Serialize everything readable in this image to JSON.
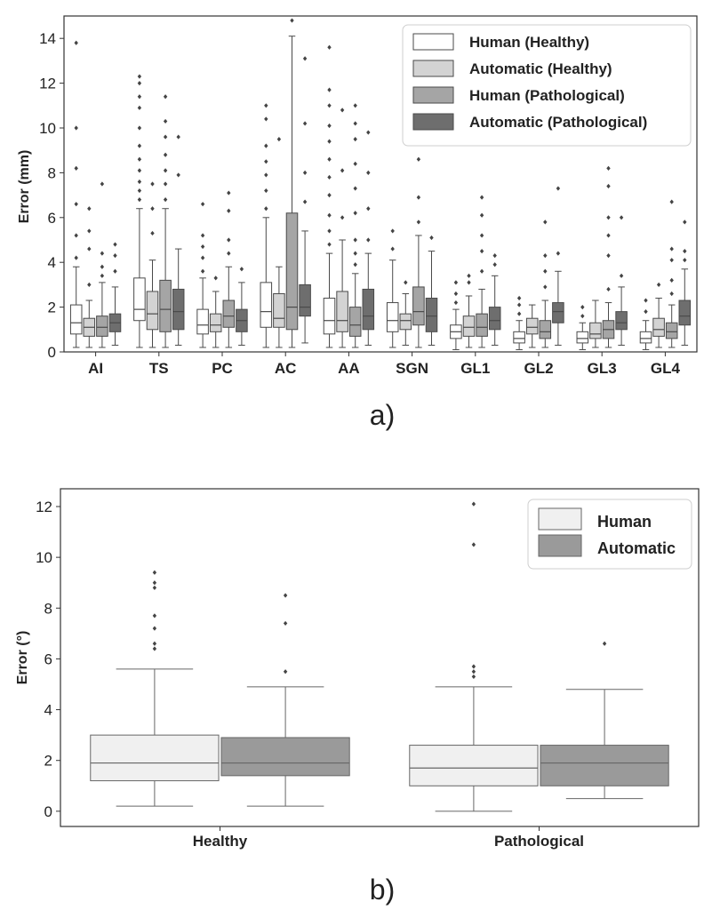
{
  "chart_data": [
    {
      "type": "box",
      "panel_label": "a)",
      "xlabel": "",
      "ylabel": "Error (mm)",
      "ylim": [
        0,
        15
      ],
      "yticks": [
        0,
        2,
        4,
        6,
        8,
        10,
        12,
        14
      ],
      "grid": false,
      "legend_position": "top-right",
      "categories": [
        "AI",
        "TS",
        "PC",
        "AC",
        "AA",
        "SGN",
        "GL1",
        "GL2",
        "GL3",
        "GL4"
      ],
      "series": [
        {
          "name": "Human (Healthy)",
          "color": "#ffffff",
          "boxes": [
            {
              "min": 0.2,
              "q1": 0.8,
              "median": 1.3,
              "q3": 2.1,
              "max": 3.8,
              "outliers": [
                4.2,
                5.2,
                6.6,
                8.2,
                10.0,
                13.8
              ]
            },
            {
              "min": 0.2,
              "q1": 1.4,
              "median": 1.9,
              "q3": 3.3,
              "max": 6.4,
              "outliers": [
                6.8,
                7.2,
                7.6,
                8.1,
                8.6,
                9.2,
                10.0,
                10.9,
                11.4,
                12.0,
                12.3
              ]
            },
            {
              "min": 0.2,
              "q1": 0.8,
              "median": 1.2,
              "q3": 1.9,
              "max": 3.3,
              "outliers": [
                3.6,
                4.2,
                4.7,
                5.2,
                6.6
              ]
            },
            {
              "min": 0.2,
              "q1": 1.1,
              "median": 1.8,
              "q3": 3.1,
              "max": 6.0,
              "outliers": [
                6.4,
                7.2,
                7.9,
                8.5,
                9.2,
                10.4,
                11.0
              ]
            },
            {
              "min": 0.2,
              "q1": 0.8,
              "median": 1.4,
              "q3": 2.4,
              "max": 4.4,
              "outliers": [
                4.8,
                5.4,
                6.1,
                7.0,
                7.8,
                8.6,
                9.4,
                10.1,
                11.0,
                11.7,
                13.6
              ]
            },
            {
              "min": 0.2,
              "q1": 0.9,
              "median": 1.4,
              "q3": 2.2,
              "max": 4.1,
              "outliers": [
                4.6,
                5.4
              ]
            },
            {
              "min": 0.1,
              "q1": 0.6,
              "median": 0.9,
              "q3": 1.2,
              "max": 1.9,
              "outliers": [
                2.2,
                2.6,
                3.1
              ]
            },
            {
              "min": 0.1,
              "q1": 0.4,
              "median": 0.6,
              "q3": 0.9,
              "max": 1.4,
              "outliers": [
                1.7,
                2.1,
                2.4
              ]
            },
            {
              "min": 0.1,
              "q1": 0.4,
              "median": 0.6,
              "q3": 0.9,
              "max": 1.3,
              "outliers": [
                1.6,
                2.0
              ]
            },
            {
              "min": 0.1,
              "q1": 0.4,
              "median": 0.6,
              "q3": 0.9,
              "max": 1.4,
              "outliers": [
                1.8,
                2.3
              ]
            }
          ]
        },
        {
          "name": "Automatic (Healthy)",
          "color": "#d3d3d3",
          "boxes": [
            {
              "min": 0.2,
              "q1": 0.7,
              "median": 1.1,
              "q3": 1.5,
              "max": 2.3,
              "outliers": [
                3.0,
                4.6,
                5.4,
                6.4
              ]
            },
            {
              "min": 0.2,
              "q1": 1.0,
              "median": 1.7,
              "q3": 2.7,
              "max": 4.1,
              "outliers": [
                5.3,
                6.4,
                7.5
              ]
            },
            {
              "min": 0.2,
              "q1": 0.9,
              "median": 1.2,
              "q3": 1.7,
              "max": 2.7,
              "outliers": [
                3.3
              ]
            },
            {
              "min": 0.2,
              "q1": 1.1,
              "median": 1.5,
              "q3": 2.6,
              "max": 3.8,
              "outliers": [
                9.5
              ]
            },
            {
              "min": 0.2,
              "q1": 0.9,
              "median": 1.4,
              "q3": 2.7,
              "max": 5.0,
              "outliers": [
                6.0,
                8.1,
                10.8
              ]
            },
            {
              "min": 0.3,
              "q1": 1.0,
              "median": 1.4,
              "q3": 1.7,
              "max": 2.6,
              "outliers": [
                3.1
              ]
            },
            {
              "min": 0.2,
              "q1": 0.7,
              "median": 1.1,
              "q3": 1.6,
              "max": 2.5,
              "outliers": [
                3.1,
                3.4
              ]
            },
            {
              "min": 0.2,
              "q1": 0.8,
              "median": 1.1,
              "q3": 1.5,
              "max": 2.1,
              "outliers": []
            },
            {
              "min": 0.2,
              "q1": 0.6,
              "median": 0.8,
              "q3": 1.3,
              "max": 2.3,
              "outliers": []
            },
            {
              "min": 0.2,
              "q1": 0.7,
              "median": 1.0,
              "q3": 1.5,
              "max": 2.4,
              "outliers": [
                3.0
              ]
            }
          ]
        },
        {
          "name": "Human (Pathological)",
          "color": "#a5a5a5",
          "boxes": [
            {
              "min": 0.2,
              "q1": 0.7,
              "median": 1.1,
              "q3": 1.6,
              "max": 3.1,
              "outliers": [
                3.4,
                3.8,
                4.4,
                7.5
              ]
            },
            {
              "min": 0.2,
              "q1": 0.9,
              "median": 1.9,
              "q3": 3.2,
              "max": 6.4,
              "outliers": [
                6.8,
                7.5,
                8.1,
                8.8,
                9.6,
                10.3,
                11.4
              ]
            },
            {
              "min": 0.2,
              "q1": 1.1,
              "median": 1.6,
              "q3": 2.3,
              "max": 3.8,
              "outliers": [
                4.4,
                5.0,
                6.3,
                7.1
              ]
            },
            {
              "min": 0.2,
              "q1": 1.0,
              "median": 2.0,
              "q3": 6.2,
              "max": 14.1,
              "outliers": [
                14.8
              ]
            },
            {
              "min": 0.2,
              "q1": 0.7,
              "median": 1.2,
              "q3": 2.0,
              "max": 3.5,
              "outliers": [
                3.9,
                4.4,
                5.0,
                6.2,
                7.3,
                8.4,
                9.5,
                10.2,
                11.0
              ]
            },
            {
              "min": 0.2,
              "q1": 1.2,
              "median": 1.8,
              "q3": 2.9,
              "max": 5.2,
              "outliers": [
                5.8,
                6.9,
                8.6
              ]
            },
            {
              "min": 0.2,
              "q1": 0.7,
              "median": 1.1,
              "q3": 1.7,
              "max": 2.8,
              "outliers": [
                3.6,
                4.5,
                5.2,
                6.1,
                6.9
              ]
            },
            {
              "min": 0.2,
              "q1": 0.6,
              "median": 0.9,
              "q3": 1.4,
              "max": 2.3,
              "outliers": [
                2.9,
                3.6,
                4.3,
                5.8
              ]
            },
            {
              "min": 0.2,
              "q1": 0.6,
              "median": 1.0,
              "q3": 1.4,
              "max": 2.2,
              "outliers": [
                2.8,
                4.3,
                5.2,
                6.0,
                7.4,
                8.2
              ]
            },
            {
              "min": 0.2,
              "q1": 0.6,
              "median": 0.9,
              "q3": 1.3,
              "max": 2.1,
              "outliers": [
                2.6,
                3.2,
                4.1,
                4.6,
                6.7
              ]
            }
          ]
        },
        {
          "name": "Automatic (Pathological)",
          "color": "#6e6e6e",
          "boxes": [
            {
              "min": 0.3,
              "q1": 0.9,
              "median": 1.3,
              "q3": 1.7,
              "max": 2.9,
              "outliers": [
                3.6,
                4.3,
                4.8
              ]
            },
            {
              "min": 0.3,
              "q1": 1.0,
              "median": 1.8,
              "q3": 2.8,
              "max": 4.6,
              "outliers": [
                7.9,
                9.6
              ]
            },
            {
              "min": 0.3,
              "q1": 0.9,
              "median": 1.4,
              "q3": 1.9,
              "max": 3.1,
              "outliers": [
                3.7
              ]
            },
            {
              "min": 0.4,
              "q1": 1.6,
              "median": 2.0,
              "q3": 3.0,
              "max": 5.4,
              "outliers": [
                6.7,
                8.0,
                10.2,
                13.1
              ]
            },
            {
              "min": 0.3,
              "q1": 1.0,
              "median": 1.6,
              "q3": 2.8,
              "max": 4.4,
              "outliers": [
                5.0,
                6.4,
                8.0,
                9.8
              ]
            },
            {
              "min": 0.3,
              "q1": 0.9,
              "median": 1.6,
              "q3": 2.4,
              "max": 4.5,
              "outliers": [
                5.1
              ]
            },
            {
              "min": 0.3,
              "q1": 1.0,
              "median": 1.4,
              "q3": 2.0,
              "max": 3.4,
              "outliers": [
                3.9,
                4.3
              ]
            },
            {
              "min": 0.3,
              "q1": 1.3,
              "median": 1.8,
              "q3": 2.2,
              "max": 3.6,
              "outliers": [
                4.4,
                7.3
              ]
            },
            {
              "min": 0.3,
              "q1": 1.0,
              "median": 1.3,
              "q3": 1.8,
              "max": 2.9,
              "outliers": [
                3.4,
                6.0
              ]
            },
            {
              "min": 0.3,
              "q1": 1.2,
              "median": 1.6,
              "q3": 2.3,
              "max": 3.7,
              "outliers": [
                4.1,
                4.5,
                5.8
              ]
            }
          ]
        }
      ]
    },
    {
      "type": "box",
      "panel_label": "b)",
      "xlabel": "",
      "ylabel": "Error (°)",
      "ylim": [
        -0.6,
        12.7
      ],
      "yticks": [
        0,
        2,
        4,
        6,
        8,
        10,
        12
      ],
      "grid": false,
      "legend_position": "top-right",
      "categories": [
        "Healthy",
        "Pathological"
      ],
      "series": [
        {
          "name": "Human",
          "color": "#f0f0f0",
          "boxes": [
            {
              "min": 0.2,
              "q1": 1.2,
              "median": 1.9,
              "q3": 3.0,
              "max": 5.6,
              "outliers": [
                6.4,
                6.6,
                7.2,
                7.7,
                8.8,
                9.0,
                9.4
              ]
            },
            {
              "min": 0.0,
              "q1": 1.0,
              "median": 1.7,
              "q3": 2.6,
              "max": 4.9,
              "outliers": [
                5.3,
                5.5,
                5.7,
                10.5,
                12.1
              ]
            }
          ]
        },
        {
          "name": "Automatic",
          "color": "#9a9a9a",
          "boxes": [
            {
              "min": 0.2,
              "q1": 1.4,
              "median": 1.9,
              "q3": 2.9,
              "max": 4.9,
              "outliers": [
                5.5,
                7.4,
                8.5
              ]
            },
            {
              "min": 0.5,
              "q1": 1.0,
              "median": 1.9,
              "q3": 2.6,
              "max": 4.8,
              "outliers": [
                6.6
              ]
            }
          ]
        }
      ]
    }
  ]
}
